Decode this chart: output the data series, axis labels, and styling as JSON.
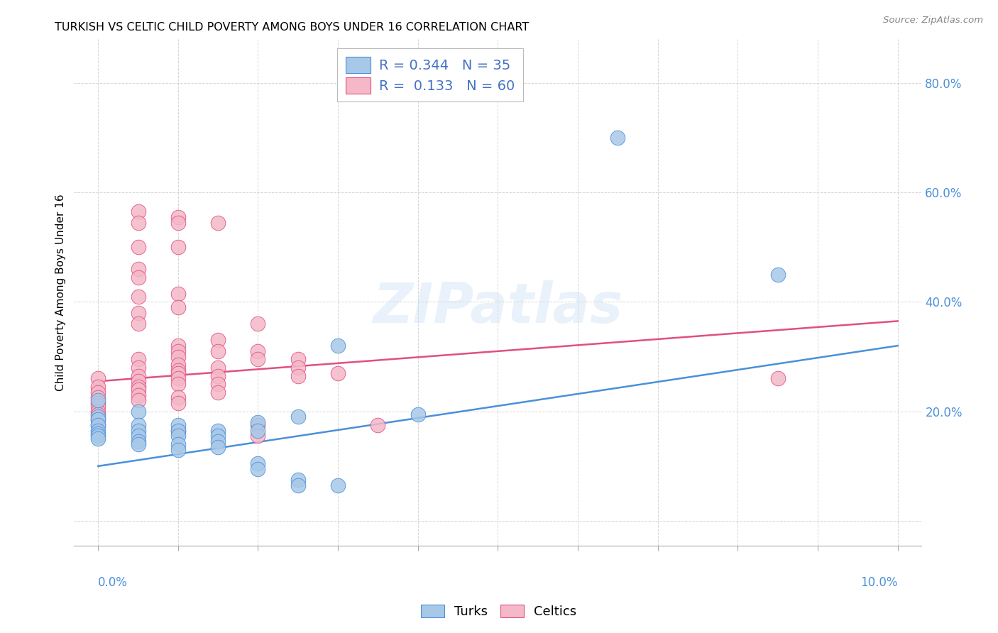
{
  "title": "TURKISH VS CELTIC CHILD POVERTY AMONG BOYS UNDER 16 CORRELATION CHART",
  "source": "Source: ZipAtlas.com",
  "ylabel": "Child Poverty Among Boys Under 16",
  "legend_blue_R": "0.344",
  "legend_blue_N": "35",
  "legend_pink_R": "0.133",
  "legend_pink_N": "60",
  "watermark": "ZIPatlas",
  "blue_color": "#a8c8e8",
  "pink_color": "#f4b8c8",
  "blue_line_color": "#4a90d9",
  "pink_line_color": "#e05080",
  "legend_text_color": "#4472c4",
  "blue_scatter": [
    [
      0.0,
      0.22
    ],
    [
      0.0,
      0.19
    ],
    [
      0.0,
      0.185
    ],
    [
      0.0,
      0.175
    ],
    [
      0.0,
      0.165
    ],
    [
      0.0,
      0.16
    ],
    [
      0.0,
      0.155
    ],
    [
      0.0,
      0.15
    ],
    [
      0.005,
      0.2
    ],
    [
      0.005,
      0.175
    ],
    [
      0.005,
      0.165
    ],
    [
      0.005,
      0.155
    ],
    [
      0.005,
      0.145
    ],
    [
      0.005,
      0.14
    ],
    [
      0.01,
      0.175
    ],
    [
      0.01,
      0.165
    ],
    [
      0.01,
      0.155
    ],
    [
      0.01,
      0.14
    ],
    [
      0.01,
      0.13
    ],
    [
      0.015,
      0.165
    ],
    [
      0.015,
      0.155
    ],
    [
      0.015,
      0.145
    ],
    [
      0.015,
      0.135
    ],
    [
      0.02,
      0.18
    ],
    [
      0.02,
      0.165
    ],
    [
      0.02,
      0.105
    ],
    [
      0.02,
      0.095
    ],
    [
      0.025,
      0.19
    ],
    [
      0.025,
      0.075
    ],
    [
      0.025,
      0.065
    ],
    [
      0.03,
      0.32
    ],
    [
      0.03,
      0.065
    ],
    [
      0.04,
      0.195
    ],
    [
      0.065,
      0.7
    ],
    [
      0.085,
      0.45
    ]
  ],
  "pink_scatter": [
    [
      0.0,
      0.26
    ],
    [
      0.0,
      0.245
    ],
    [
      0.0,
      0.235
    ],
    [
      0.0,
      0.225
    ],
    [
      0.0,
      0.215
    ],
    [
      0.0,
      0.21
    ],
    [
      0.0,
      0.2
    ],
    [
      0.0,
      0.195
    ],
    [
      0.0,
      0.185
    ],
    [
      0.0,
      0.175
    ],
    [
      0.005,
      0.565
    ],
    [
      0.005,
      0.545
    ],
    [
      0.005,
      0.5
    ],
    [
      0.005,
      0.46
    ],
    [
      0.005,
      0.445
    ],
    [
      0.005,
      0.41
    ],
    [
      0.005,
      0.38
    ],
    [
      0.005,
      0.36
    ],
    [
      0.005,
      0.295
    ],
    [
      0.005,
      0.28
    ],
    [
      0.005,
      0.265
    ],
    [
      0.005,
      0.255
    ],
    [
      0.005,
      0.245
    ],
    [
      0.005,
      0.24
    ],
    [
      0.005,
      0.23
    ],
    [
      0.005,
      0.22
    ],
    [
      0.01,
      0.555
    ],
    [
      0.01,
      0.545
    ],
    [
      0.01,
      0.5
    ],
    [
      0.01,
      0.415
    ],
    [
      0.01,
      0.39
    ],
    [
      0.01,
      0.32
    ],
    [
      0.01,
      0.31
    ],
    [
      0.01,
      0.3
    ],
    [
      0.01,
      0.285
    ],
    [
      0.01,
      0.275
    ],
    [
      0.01,
      0.27
    ],
    [
      0.01,
      0.26
    ],
    [
      0.01,
      0.25
    ],
    [
      0.01,
      0.225
    ],
    [
      0.01,
      0.215
    ],
    [
      0.01,
      0.165
    ],
    [
      0.015,
      0.545
    ],
    [
      0.015,
      0.33
    ],
    [
      0.015,
      0.31
    ],
    [
      0.015,
      0.28
    ],
    [
      0.015,
      0.265
    ],
    [
      0.015,
      0.25
    ],
    [
      0.015,
      0.235
    ],
    [
      0.02,
      0.36
    ],
    [
      0.02,
      0.31
    ],
    [
      0.02,
      0.295
    ],
    [
      0.02,
      0.175
    ],
    [
      0.02,
      0.155
    ],
    [
      0.025,
      0.295
    ],
    [
      0.025,
      0.28
    ],
    [
      0.025,
      0.265
    ],
    [
      0.03,
      0.27
    ],
    [
      0.035,
      0.175
    ],
    [
      0.085,
      0.26
    ]
  ],
  "blue_line": {
    "x0": 0.0,
    "y0": 0.1,
    "x1": 0.1,
    "y1": 0.32
  },
  "pink_line": {
    "x0": 0.0,
    "y0": 0.255,
    "x1": 0.1,
    "y1": 0.365
  },
  "xlim": [
    -0.003,
    0.103
  ],
  "ylim": [
    -0.045,
    0.88
  ],
  "x_ticks": [
    0.0,
    0.01,
    0.02,
    0.03,
    0.04,
    0.05,
    0.06,
    0.07,
    0.08,
    0.09,
    0.1
  ],
  "y_ticks": [
    0.0,
    0.2,
    0.4,
    0.6,
    0.8
  ]
}
